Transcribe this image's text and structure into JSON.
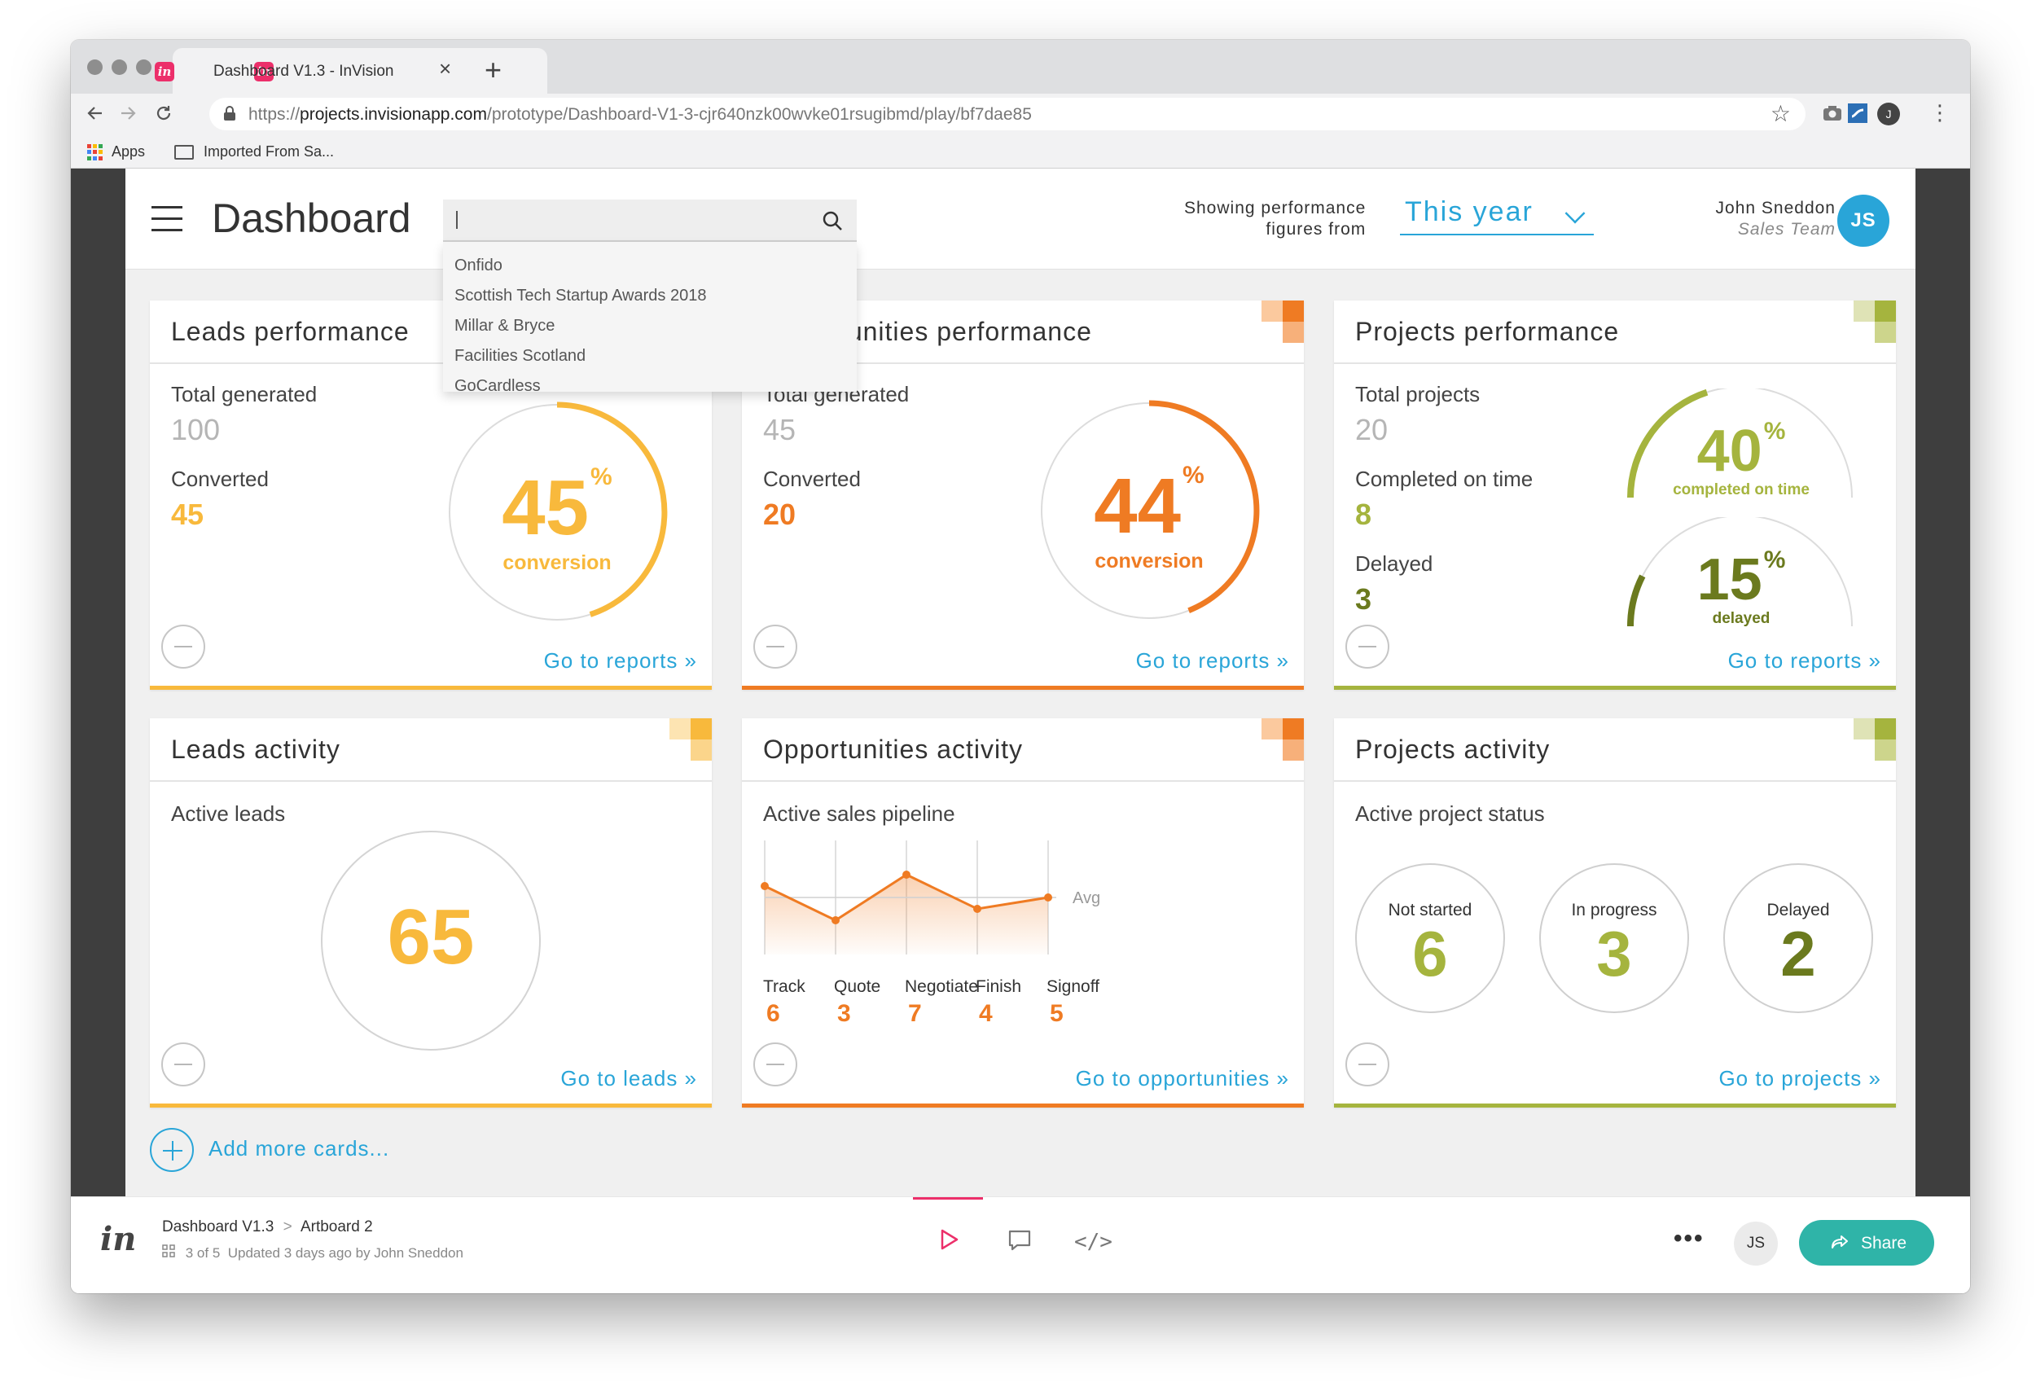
{
  "browser": {
    "tab_title": "Dashboard V1.3 - InVision",
    "favicon_letter": "in",
    "new_tab": "+",
    "close_tab": "×",
    "url_prefix": "https://",
    "url_host": "projects.invisionapp.com",
    "url_path": "/prototype/Dashboard-V1-3-cjr640nzk00wvke01rsugibmd/play/bf7dae85",
    "profile_initial": "J",
    "bookmarks": [
      {
        "label": "Apps",
        "icon": "apps-grid-icon"
      },
      {
        "label": "Imported From Sa...",
        "icon": "folder-icon"
      }
    ]
  },
  "header": {
    "title": "Dashboard",
    "search": {
      "placeholder": "",
      "suggestions": [
        "Onfido",
        "Scottish Tech Startup Awards 2018",
        "Millar & Bryce",
        "Facilities Scotland",
        "GoCardless"
      ]
    },
    "performance_label_line1": "Showing performance",
    "performance_label_line2": "figures from",
    "period": "This year",
    "user_name": "John Sneddon",
    "user_team": "Sales Team",
    "user_initials": "JS"
  },
  "colors": {
    "leads": "#f8b93c",
    "opportunities": "#ef7b23",
    "projects": "#a5b43e",
    "projects_dark": "#6b7a1e",
    "link": "#29a5d8",
    "share": "#2fb4a8",
    "invision_pink": "#ec2f6a"
  },
  "cards": {
    "leads_perf": {
      "title": "Leads performance",
      "total_label": "Total generated",
      "total_value": "100",
      "converted_label": "Converted",
      "converted_value": "45",
      "ring_value": "45",
      "ring_pct": "%",
      "ring_caption": "conversion",
      "ring_fraction": 0.45,
      "link": "Go to reports »"
    },
    "opps_perf": {
      "title": "Opportunities performance",
      "total_label": "Total generated",
      "total_value": "45",
      "converted_label": "Converted",
      "converted_value": "20",
      "ring_value": "44",
      "ring_pct": "%",
      "ring_caption": "conversion",
      "ring_fraction": 0.44,
      "link": "Go to reports »"
    },
    "projects_perf": {
      "title": "Projects performance",
      "total_label": "Total projects",
      "total_value": "20",
      "ontime_label": "Completed on time",
      "ontime_value": "8",
      "delayed_label": "Delayed",
      "delayed_value": "3",
      "gauge1_value": "40",
      "gauge1_pct": "%",
      "gauge1_caption": "completed on time",
      "gauge1_fraction": 0.4,
      "gauge2_value": "15",
      "gauge2_pct": "%",
      "gauge2_caption": "delayed",
      "gauge2_fraction": 0.15,
      "link": "Go to reports »"
    },
    "leads_act": {
      "title": "Leads activity",
      "sub": "Active leads",
      "value": "65",
      "link": "Go to leads »"
    },
    "opps_act": {
      "title": "Opportunities activity",
      "sub": "Active sales pipeline",
      "avg_label": "Avg",
      "link": "Go to opportunities »"
    },
    "projects_act": {
      "title": "Projects activity",
      "sub": "Active project status",
      "statuses": [
        {
          "label": "Not started",
          "value": "6"
        },
        {
          "label": "In progress",
          "value": "3"
        },
        {
          "label": "Delayed",
          "value": "2"
        }
      ],
      "link": "Go to projects »"
    }
  },
  "chart_data": {
    "type": "area",
    "categories": [
      "Track",
      "Quote",
      "Negotiate",
      "Finish",
      "Signoff"
    ],
    "values": [
      6,
      3,
      7,
      4,
      5
    ],
    "avg_label": "Avg",
    "ylim": [
      0,
      10
    ]
  },
  "add_more": "Add more cards...",
  "invision_bar": {
    "logo": "in",
    "project": "Dashboard V1.3",
    "separator": ">",
    "screen": "Artboard 2",
    "position": "3 of 5",
    "updated": "Updated 3 days ago by John Sneddon",
    "more": "•••",
    "avatar": "JS",
    "share_label": "Share"
  }
}
